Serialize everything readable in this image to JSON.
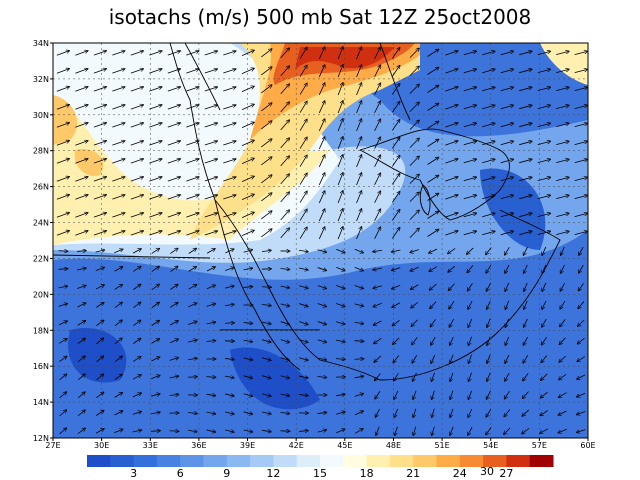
{
  "title": "isotachs (m/s) 500 mb Sat 12Z 25oct2008",
  "map": {
    "xlim": [
      27,
      60
    ],
    "xticks": [
      {
        "value": 27,
        "label": "27E"
      },
      {
        "value": 30,
        "label": "30E"
      },
      {
        "value": 33,
        "label": "33E"
      },
      {
        "value": 36,
        "label": "36E"
      },
      {
        "value": 39,
        "label": "39E"
      },
      {
        "value": 42,
        "label": "42E"
      },
      {
        "value": 45,
        "label": "45E"
      },
      {
        "value": 48,
        "label": "48E"
      },
      {
        "value": 51,
        "label": "51E"
      },
      {
        "value": 54,
        "label": "54E"
      },
      {
        "value": 57,
        "label": "57E"
      },
      {
        "value": 60,
        "label": "60E"
      }
    ],
    "ylim": [
      12,
      34
    ],
    "yticks": [
      {
        "value": 12,
        "label": "12N"
      },
      {
        "value": 14,
        "label": "14N"
      },
      {
        "value": 16,
        "label": "16N"
      },
      {
        "value": 18,
        "label": "18N"
      },
      {
        "value": 20,
        "label": "20N"
      },
      {
        "value": 22,
        "label": "22N"
      },
      {
        "value": 24,
        "label": "24N"
      },
      {
        "value": 26,
        "label": "26N"
      },
      {
        "value": 28,
        "label": "28N"
      },
      {
        "value": 30,
        "label": "30N"
      },
      {
        "value": 32,
        "label": "32N"
      },
      {
        "value": 34,
        "label": "34N"
      }
    ],
    "grid": true
  },
  "colorbar": {
    "lim": [
      0,
      30
    ],
    "ticks": [
      3,
      6,
      9,
      12,
      15,
      18,
      21,
      24,
      27
    ],
    "extra_label": "30",
    "colors": [
      "#1e4ec8",
      "#2860d2",
      "#3470dc",
      "#4a82e2",
      "#5e94e8",
      "#74a6ee",
      "#8cb8f2",
      "#a6caf6",
      "#c0dcf8",
      "#dceefa",
      "#f2fafe",
      "#fffce0",
      "#fff0b0",
      "#ffe08a",
      "#ffc868",
      "#ffac48",
      "#f88a34",
      "#e86020",
      "#d03010",
      "#a00000"
    ]
  }
}
